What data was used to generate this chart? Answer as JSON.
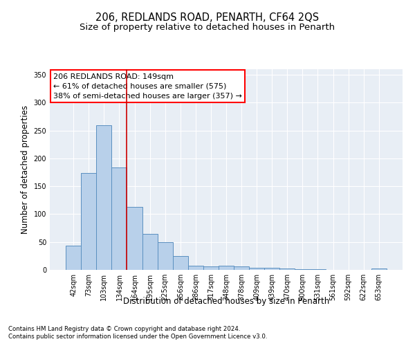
{
  "title": "206, REDLANDS ROAD, PENARTH, CF64 2QS",
  "subtitle": "Size of property relative to detached houses in Penarth",
  "xlabel": "Distribution of detached houses by size in Penarth",
  "ylabel": "Number of detached properties",
  "categories": [
    "42sqm",
    "73sqm",
    "103sqm",
    "134sqm",
    "164sqm",
    "195sqm",
    "225sqm",
    "256sqm",
    "286sqm",
    "317sqm",
    "348sqm",
    "378sqm",
    "409sqm",
    "439sqm",
    "470sqm",
    "500sqm",
    "531sqm",
    "561sqm",
    "592sqm",
    "622sqm",
    "653sqm"
  ],
  "values": [
    44,
    174,
    259,
    184,
    113,
    64,
    50,
    25,
    8,
    6,
    8,
    6,
    4,
    4,
    2,
    1,
    1,
    0,
    0,
    0,
    3
  ],
  "bar_color": "#b8d0ea",
  "bar_edge_color": "#5a8fc0",
  "red_line_index": 3,
  "annotation_line1": "206 REDLANDS ROAD: 149sqm",
  "annotation_line2": "← 61% of detached houses are smaller (575)",
  "annotation_line3": "38% of semi-detached houses are larger (357) →",
  "annotation_box_color": "white",
  "annotation_box_edge_color": "red",
  "red_line_color": "#cc0000",
  "ylim": [
    0,
    360
  ],
  "yticks": [
    0,
    50,
    100,
    150,
    200,
    250,
    300,
    350
  ],
  "background_color": "#e8eef5",
  "grid_color": "white",
  "footer1": "Contains HM Land Registry data © Crown copyright and database right 2024.",
  "footer2": "Contains public sector information licensed under the Open Government Licence v3.0.",
  "title_fontsize": 10.5,
  "subtitle_fontsize": 9.5,
  "tick_fontsize": 7,
  "ylabel_fontsize": 8.5,
  "xlabel_fontsize": 8.5,
  "annotation_fontsize": 8,
  "footer_fontsize": 6.2
}
